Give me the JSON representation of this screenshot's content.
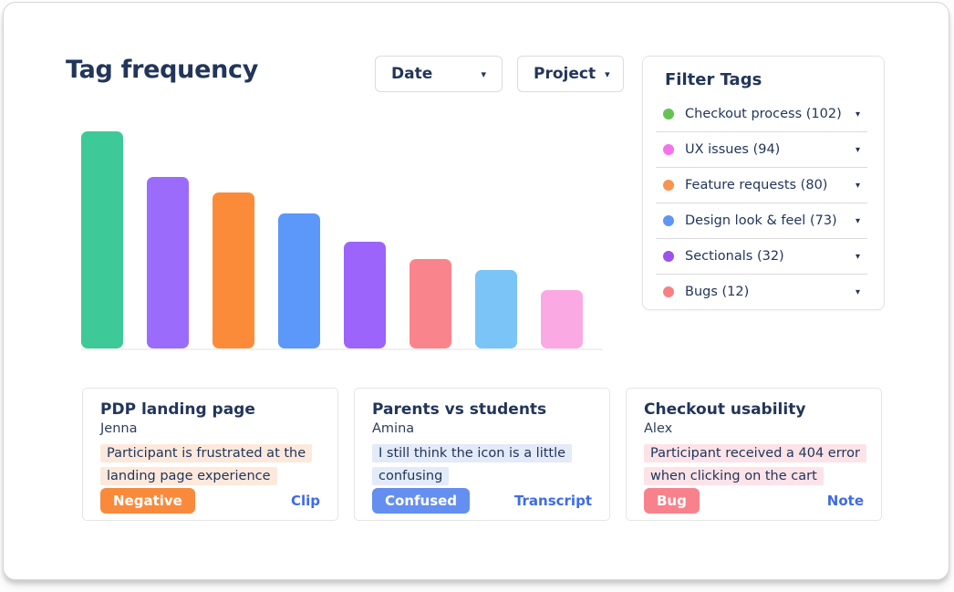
{
  "page": {
    "title": "Tag frequency"
  },
  "icons": {
    "caret": "▾"
  },
  "dropdowns": {
    "date": {
      "label": "Date"
    },
    "project": {
      "label": "Project"
    }
  },
  "filter_tags": {
    "heading": "Filter Tags",
    "items": [
      {
        "label": "Checkout process (102)",
        "color": "#67c255"
      },
      {
        "label": "UX issues (94)",
        "color": "#f473ec"
      },
      {
        "label": "Feature requests (80)",
        "color": "#f79350"
      },
      {
        "label": "Design look & feel (73)",
        "color": "#5e96f5"
      },
      {
        "label": "Sectionals (32)",
        "color": "#9d52eb"
      },
      {
        "label": "Bugs (12)",
        "color": "#f68082"
      }
    ]
  },
  "chart_data": {
    "type": "bar",
    "title": "Tag frequency",
    "categories": [
      "",
      "",
      "",
      "",
      "",
      "",
      "",
      ""
    ],
    "bars": [
      {
        "color": "#3ec998",
        "value_pct_of_max": 100
      },
      {
        "color": "#9b6cfb",
        "value_pct_of_max": 79
      },
      {
        "color": "#fb8b39",
        "value_pct_of_max": 72
      },
      {
        "color": "#5c97fa",
        "value_pct_of_max": 62
      },
      {
        "color": "#9c64fa",
        "value_pct_of_max": 49
      },
      {
        "color": "#fa848b",
        "value_pct_of_max": 41
      },
      {
        "color": "#7ac4f7",
        "value_pct_of_max": 36
      },
      {
        "color": "#fba9e3",
        "value_pct_of_max": 27
      }
    ],
    "xlabel": "",
    "ylabel": "",
    "axis_tick_labels_visible": false,
    "gridlines": false,
    "legend": "none"
  },
  "cards": [
    {
      "title": "PDP landing page",
      "author": "Jenna",
      "quote": "Participant is frustrated at the landing page experience",
      "quote_highlight": "#fce9dc",
      "badge": {
        "label": "Negative",
        "color": "#f98a3c"
      },
      "link": "Clip"
    },
    {
      "title": "Parents vs students",
      "author": "Amina",
      "quote": "I still think the icon is a little confusing",
      "quote_highlight": "#e3eaf8",
      "badge": {
        "label": "Confused",
        "color": "#648eef"
      },
      "link": "Transcript"
    },
    {
      "title": "Checkout usability",
      "author": "Alex",
      "quote": "Participant received a 404 error when clicking on the cart",
      "quote_highlight": "#fce3e7",
      "badge": {
        "label": "Bug",
        "color": "#f8828c"
      },
      "link": "Note"
    }
  ]
}
